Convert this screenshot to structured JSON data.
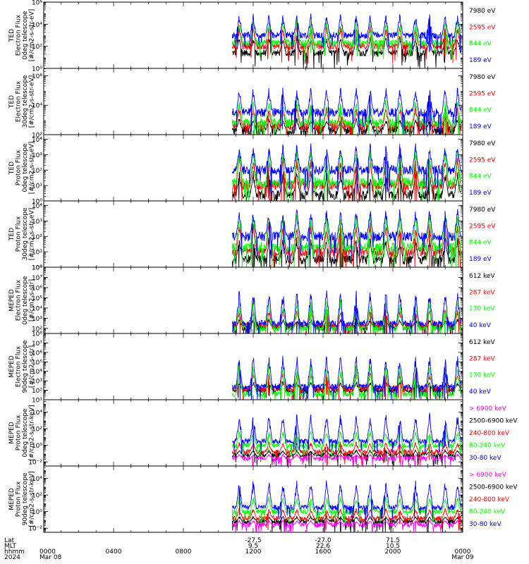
{
  "colors": {
    "black": "#000000",
    "red": "#ff0000",
    "green": "#00ff00",
    "blue": "#0000ff",
    "magenta": "#ff00ff"
  },
  "chart_data": [
    {
      "type": "line",
      "y_scale": "log",
      "ylabel": [
        "TED",
        "Electron Flux",
        "0deg telescope",
        "[#/cm2-s-str-eV]"
      ],
      "y_ticks": [
        0,
        2,
        4,
        6
      ],
      "ylim_exp": [
        0,
        6
      ],
      "series": [
        {
          "name": "7980 eV",
          "color": "black",
          "level": 1.4,
          "spike": 3.0
        },
        {
          "name": "2595 eV",
          "color": "red",
          "level": 2.0,
          "spike": 4.0
        },
        {
          "name": "844 eV",
          "color": "green",
          "level": 2.3,
          "spike": 4.5
        },
        {
          "name": "189 eV",
          "color": "blue",
          "level": 3.0,
          "spike": 5.0
        }
      ]
    },
    {
      "type": "line",
      "y_scale": "log",
      "ylabel": [
        "TED",
        "Electron Flux",
        "30deg telescope",
        "[#/cm2-s-str-eV]"
      ],
      "y_ticks": [
        2,
        4,
        6
      ],
      "ylim_exp": [
        2,
        6.5
      ],
      "series": [
        {
          "name": "7980 eV",
          "color": "black",
          "level": 2.3,
          "spike": 3.2
        },
        {
          "name": "2595 eV",
          "color": "red",
          "level": 2.6,
          "spike": 4.0
        },
        {
          "name": "844 eV",
          "color": "green",
          "level": 2.8,
          "spike": 4.5
        },
        {
          "name": "189 eV",
          "color": "blue",
          "level": 3.5,
          "spike": 5.3
        }
      ]
    },
    {
      "type": "line",
      "y_scale": "log",
      "ylabel": [
        "TED",
        "Proton Flux",
        "0deg telescope",
        "[#/cm2-s-str-eV]"
      ],
      "y_ticks": [
        0,
        1,
        2,
        3,
        4
      ],
      "ylim_exp": [
        0,
        4.3
      ],
      "series": [
        {
          "name": "7980 eV",
          "color": "black",
          "level": 0.4,
          "spike": 2.0
        },
        {
          "name": "2595 eV",
          "color": "red",
          "level": 1.0,
          "spike": 3.0
        },
        {
          "name": "844 eV",
          "color": "green",
          "level": 1.2,
          "spike": 3.6
        },
        {
          "name": "189 eV",
          "color": "blue",
          "level": 2.0,
          "spike": 3.8
        }
      ]
    },
    {
      "type": "line",
      "y_scale": "log",
      "ylabel": [
        "TED",
        "Proton Flux",
        "30deg telescope",
        "[#/cm2-s-str-eV]"
      ],
      "y_ticks": [
        0,
        1,
        2,
        3,
        4
      ],
      "ylim_exp": [
        0,
        4.3
      ],
      "series": [
        {
          "name": "7980 eV",
          "color": "black",
          "level": 0.5,
          "spike": 2.0
        },
        {
          "name": "2595 eV",
          "color": "red",
          "level": 1.0,
          "spike": 3.0
        },
        {
          "name": "844 eV",
          "color": "green",
          "level": 1.3,
          "spike": 3.7
        },
        {
          "name": "189 eV",
          "color": "blue",
          "level": 2.0,
          "spike": 3.9
        }
      ]
    },
    {
      "type": "line",
      "y_scale": "log",
      "ylabel": [
        "MEPED",
        "Electron Flux",
        "0deg telescope",
        "[#/cm2-s-str]"
      ],
      "y_ticks": [
        2,
        3,
        4,
        5,
        6,
        7,
        8
      ],
      "ylim_exp": [
        1.5,
        8
      ],
      "series": [
        {
          "name": "612 keV",
          "color": "black",
          "level": 2.1,
          "spike": 3.0
        },
        {
          "name": "287 keV",
          "color": "red",
          "level": 2.3,
          "spike": 4.0
        },
        {
          "name": "130 keV",
          "color": "green",
          "level": 2.0,
          "spike": 5.0
        },
        {
          "name": "40 keV",
          "color": "blue",
          "level": 2.5,
          "spike": 6.0
        }
      ]
    },
    {
      "type": "line",
      "y_scale": "log",
      "ylabel": [
        "MEPED",
        "Electron Flux",
        "90deg telescope",
        "[#/cm2-s-str]"
      ],
      "y_ticks": [
        1,
        2,
        3,
        4,
        5,
        6,
        7,
        8
      ],
      "ylim_exp": [
        1,
        8
      ],
      "series": [
        {
          "name": "612 keV",
          "color": "black",
          "level": 2.0,
          "spike": 3.0
        },
        {
          "name": "287 keV",
          "color": "red",
          "level": 2.2,
          "spike": 4.0
        },
        {
          "name": "130 keV",
          "color": "green",
          "level": 1.6,
          "spike": 5.0
        },
        {
          "name": "40 keV",
          "color": "blue",
          "level": 2.4,
          "spike": 6.0
        }
      ]
    },
    {
      "type": "line",
      "y_scale": "log",
      "ylabel": [
        "MEPED",
        "Proton Flux",
        "0deg telescope",
        "[#/cm2-s-str-keV]"
      ],
      "y_ticks": [
        -2,
        0,
        2,
        4
      ],
      "ylim_exp": [
        -2.5,
        5.5
      ],
      "series": [
        {
          "name": "> 6900 keV",
          "color": "magenta",
          "level": -1.6,
          "spike": -1.0
        },
        {
          "name": "2500-6900 keV",
          "color": "black",
          "level": -1.2,
          "spike": -0.5
        },
        {
          "name": "240-800 keV",
          "color": "red",
          "level": -0.8,
          "spike": 0.5
        },
        {
          "name": "80-240 keV",
          "color": "green",
          "level": 0.0,
          "spike": 2.0
        },
        {
          "name": "30-80 keV",
          "color": "blue",
          "level": 0.5,
          "spike": 4.0
        }
      ]
    },
    {
      "type": "line",
      "y_scale": "log",
      "ylabel": [
        "MEPED",
        "Proton Flux",
        "90deg telescope",
        "[#/cm2-s-str-keV]"
      ],
      "y_ticks": [
        -2,
        0,
        2,
        4
      ],
      "ylim_exp": [
        -2.5,
        5.5
      ],
      "series": [
        {
          "name": "> 6900 keV",
          "color": "magenta",
          "level": -1.6,
          "spike": -1.0
        },
        {
          "name": "2500-6900 keV",
          "color": "black",
          "level": -1.2,
          "spike": -0.5
        },
        {
          "name": "240-800 keV",
          "color": "red",
          "level": -0.8,
          "spike": 0.5
        },
        {
          "name": "80-240 keV",
          "color": "green",
          "level": 0.0,
          "spike": 2.0
        },
        {
          "name": "30-80 keV",
          "color": "blue",
          "level": 0.5,
          "spike": 4.0
        }
      ]
    }
  ],
  "x_axis": {
    "row_labels": [
      "Lat",
      "MLT",
      "hhmm",
      "2024"
    ],
    "start_hour": 0,
    "end_hour": 24,
    "data_start_hour": 10.8,
    "ticks": [
      {
        "hour": 0,
        "lines": [
          "",
          "",
          "0000",
          "Mar 08"
        ]
      },
      {
        "hour": 4,
        "lines": [
          "",
          "",
          "0400",
          ""
        ]
      },
      {
        "hour": 8,
        "lines": [
          "",
          "",
          "0800",
          ""
        ]
      },
      {
        "hour": 12,
        "lines": [
          "-27.5",
          "9.5",
          "1200",
          ""
        ]
      },
      {
        "hour": 16,
        "lines": [
          "-27.0",
          "22.6",
          "1600",
          ""
        ]
      },
      {
        "hour": 20,
        "lines": [
          "71.5",
          "10.5",
          "2000",
          ""
        ]
      },
      {
        "hour": 24,
        "lines": [
          "",
          "",
          "0000",
          "Mar 09"
        ]
      }
    ]
  },
  "orbit_peaks_hour": [
    11.2,
    12.0,
    12.9,
    13.7,
    14.5,
    15.3,
    16.2,
    17.0,
    17.9,
    18.7,
    19.6,
    20.4,
    21.3,
    22.1,
    23.0,
    23.7
  ]
}
